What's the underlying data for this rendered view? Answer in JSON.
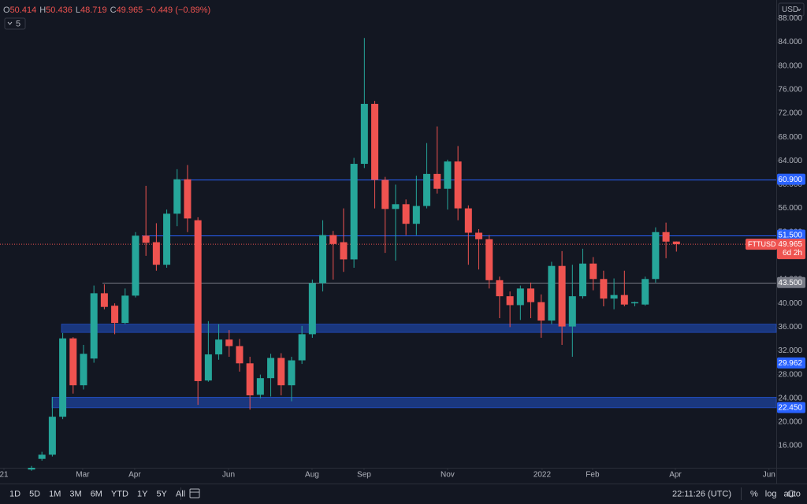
{
  "chart_data": {
    "type": "candlestick",
    "header": {
      "items": [
        {
          "key": "O",
          "value": "50.414"
        },
        {
          "key": "H",
          "value": "50.436"
        },
        {
          "key": "L",
          "value": "48.719"
        },
        {
          "key": "C",
          "value": "49.965"
        }
      ],
      "change": "−0.449 (−0.89%)"
    },
    "indicator_badge": "5",
    "currency": "USD",
    "symbol": "FTTUSD",
    "countdown": "6d 2h",
    "x": [
      0,
      1,
      2,
      3,
      4,
      5,
      6,
      7,
      8,
      9,
      10,
      11,
      12,
      13,
      14,
      15,
      16,
      17,
      18,
      19,
      20,
      21,
      22,
      23,
      24,
      25,
      26,
      27,
      28,
      29,
      30,
      31,
      32,
      33,
      34,
      35,
      36,
      37,
      38,
      39,
      40,
      41,
      42,
      43,
      44,
      45,
      46,
      47,
      48,
      49,
      50,
      51,
      52,
      53,
      54,
      55,
      56,
      57,
      58,
      59,
      60,
      61,
      62
    ],
    "open": [
      12.0,
      13.8,
      14.5,
      20.9,
      34.1,
      26.2,
      30.7,
      41.7,
      39.6,
      36.7,
      41.3,
      51.4,
      50.3,
      46.5,
      55.1,
      60.9,
      54.0,
      27.0,
      31.4,
      33.9,
      32.8,
      29.9,
      24.6,
      27.4,
      30.8,
      26.2,
      30.4,
      34.8,
      43.4,
      51.5,
      50.3,
      47.4,
      63.5,
      73.6,
      60.8,
      55.9,
      56.7,
      53.4,
      56.4,
      61.8,
      59.3,
      63.9,
      56.0,
      51.9,
      50.8,
      43.9,
      41.2,
      39.7,
      42.5,
      40.2,
      37.1,
      46.3,
      36.1,
      41.2,
      46.7,
      44.1,
      40.8,
      41.4,
      40.0,
      39.8,
      44.1,
      52.0,
      50.414
    ],
    "high": [
      12.6,
      15.0,
      24.2,
      35.0,
      34.3,
      33.0,
      43.0,
      43.2,
      40.0,
      42.5,
      52.0,
      59.8,
      53.5,
      55.8,
      62.6,
      63.3,
      54.5,
      37.0,
      36.5,
      35.5,
      34.0,
      31.0,
      28.0,
      31.5,
      31.6,
      31.0,
      36.2,
      44.0,
      54.0,
      52.2,
      56.0,
      64.5,
      84.7,
      74.1,
      61.3,
      60.0,
      57.5,
      61.5,
      67.0,
      69.8,
      64.2,
      66.5,
      56.5,
      52.5,
      51.5,
      44.5,
      42.0,
      43.0,
      43.5,
      41.5,
      47.0,
      48.8,
      46.5,
      49.2,
      47.8,
      45.5,
      44.2,
      45.5,
      40.3,
      44.5,
      52.8,
      53.6,
      50.436
    ],
    "low": [
      11.8,
      13.5,
      14.2,
      20.5,
      24.8,
      25.5,
      30.0,
      39.0,
      34.8,
      36.5,
      41.0,
      48.0,
      45.5,
      46.0,
      53.0,
      52.0,
      22.9,
      26.8,
      30.5,
      31.0,
      28.5,
      22.1,
      24.0,
      24.3,
      24.5,
      23.5,
      29.8,
      34.2,
      42.0,
      44.0,
      45.3,
      46.0,
      62.8,
      56.0,
      48.5,
      47.2,
      51.5,
      51.5,
      56.0,
      58.5,
      55.8,
      54.0,
      46.5,
      45.7,
      42.5,
      37.5,
      36.0,
      37.2,
      37.5,
      34.2,
      36.5,
      33.0,
      31.0,
      40.8,
      42.2,
      39.5,
      39.0,
      39.5,
      39.5,
      39.6,
      43.5,
      47.6,
      48.719
    ],
    "close": [
      12.3,
      14.5,
      20.9,
      34.1,
      26.2,
      31.5,
      41.7,
      39.4,
      36.7,
      41.3,
      51.4,
      50.2,
      46.5,
      55.1,
      60.9,
      54.3,
      26.9,
      31.4,
      33.9,
      32.8,
      29.9,
      24.5,
      27.4,
      30.8,
      26.2,
      30.4,
      34.8,
      43.4,
      51.5,
      50.0,
      47.4,
      63.5,
      73.6,
      60.8,
      55.9,
      56.7,
      53.4,
      56.4,
      61.8,
      59.3,
      63.9,
      56.0,
      51.9,
      50.8,
      43.9,
      41.2,
      39.7,
      42.5,
      40.2,
      37.1,
      46.3,
      36.1,
      41.2,
      46.7,
      44.1,
      40.8,
      41.4,
      39.8,
      40.2,
      44.1,
      52.0,
      50.4,
      49.965
    ],
    "up_color": "#26a69a",
    "down_color": "#ef5350",
    "xlim": [
      -3.03,
      71.6
    ],
    "xticks": [
      {
        "value": -2.65,
        "label": "21"
      },
      {
        "value": 4.92,
        "label": "Mar"
      },
      {
        "value": 9.92,
        "label": "Apr"
      },
      {
        "value": 18.94,
        "label": "Jun"
      },
      {
        "value": 26.97,
        "label": "Aug"
      },
      {
        "value": 31.97,
        "label": "Sep"
      },
      {
        "value": 40.0,
        "label": "Nov"
      },
      {
        "value": 49.09,
        "label": "2022"
      },
      {
        "value": 53.94,
        "label": "Feb"
      },
      {
        "value": 61.9,
        "label": "Apr"
      },
      {
        "value": 70.9,
        "label": "Jun"
      }
    ],
    "ylim": [
      12.3,
      91.1
    ],
    "yticks": [
      {
        "value": 16,
        "label": "16.000"
      },
      {
        "value": 20,
        "label": "20.000"
      },
      {
        "value": 24,
        "label": "24.000"
      },
      {
        "value": 28,
        "label": "28.000"
      },
      {
        "value": 32,
        "label": "32.000"
      },
      {
        "value": 36,
        "label": "36.000"
      },
      {
        "value": 40,
        "label": "40.000"
      },
      {
        "value": 44,
        "label": "44.000"
      },
      {
        "value": 48,
        "label": "48.000"
      },
      {
        "value": 52,
        "label": "52.000"
      },
      {
        "value": 56,
        "label": "56.000"
      },
      {
        "value": 60,
        "label": "60.000"
      },
      {
        "value": 64,
        "label": "64.000"
      },
      {
        "value": 68,
        "label": "68.000"
      },
      {
        "value": 72,
        "label": "72.000"
      },
      {
        "value": 76,
        "label": "76.000"
      },
      {
        "value": 80,
        "label": "80.000"
      },
      {
        "value": 84,
        "label": "84.000"
      },
      {
        "value": 88,
        "label": "88.000"
      }
    ],
    "grid": false,
    "levels": [
      {
        "value": 60.9,
        "label": "60.900",
        "color": "#2962ff",
        "line": true
      },
      {
        "value": 51.5,
        "label": "51.500",
        "color": "#2962ff",
        "line": true
      },
      {
        "value": 43.5,
        "label": "43.500",
        "color": "#787b86",
        "line": true
      },
      {
        "value": 29.962,
        "label": "29.962",
        "color": "#2962ff",
        "line": false
      },
      {
        "value": 22.45,
        "label": "22.450",
        "color": "#2962ff",
        "line": false
      }
    ],
    "zones": [
      {
        "top": 36.5,
        "bottom": 35.1,
        "color": "#1c3d8f"
      },
      {
        "top": 24.2,
        "bottom": 22.4,
        "color": "#1c3d8f"
      }
    ],
    "last_price_color": "#ef5350",
    "toolbar": {
      "ranges": [
        "1D",
        "5D",
        "1M",
        "3M",
        "6M",
        "YTD",
        "1Y",
        "5Y",
        "All"
      ],
      "clock": "22:11:26 (UTC)",
      "options": [
        "%",
        "log",
        "auto"
      ]
    }
  }
}
